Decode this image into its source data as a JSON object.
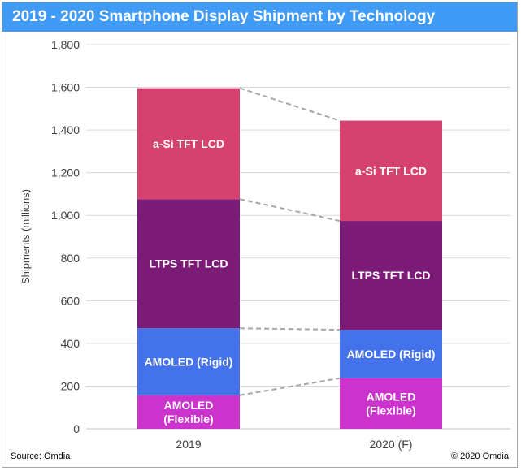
{
  "header": {
    "title": "2019 - 2020 Smartphone Display Shipment by Technology"
  },
  "footer": {
    "source": "Source: Omdia",
    "copyright": "© 2020 Omdia"
  },
  "chart_data": {
    "type": "bar",
    "stacked": true,
    "title": "2019 - 2020 Smartphone Display Shipment by Technology",
    "xlabel": "",
    "ylabel": "Shipments (millions)",
    "ylim": [
      0,
      1800
    ],
    "yticks": [
      0,
      200,
      400,
      600,
      800,
      1000,
      1200,
      1400,
      1600,
      1800
    ],
    "ytick_labels": [
      "0",
      "200",
      "400",
      "600",
      "800",
      "1,000",
      "1,200",
      "1,400",
      "1,600",
      "1,800"
    ],
    "categories": [
      "2019",
      "2020 (F)"
    ],
    "series": [
      {
        "name": "AMOLED (Flexible)",
        "values": [
          157,
          237
        ],
        "color": "#cc33cc",
        "label_lines": [
          "AMOLED",
          "(Flexible)"
        ]
      },
      {
        "name": "AMOLED (Rigid)",
        "values": [
          314,
          227
        ],
        "color": "#4472ea",
        "label_lines": [
          "AMOLED (Rigid)"
        ]
      },
      {
        "name": "LTPS TFT LCD",
        "values": [
          605,
          510
        ],
        "color": "#7b1a77",
        "label_lines": [
          "LTPS TFT LCD"
        ]
      },
      {
        "name": "a-Si TFT LCD",
        "values": [
          520,
          470
        ],
        "color": "#d6426f",
        "label_lines": [
          "a-Si TFT LCD"
        ]
      }
    ],
    "grid": true,
    "connector_lines": true,
    "legend": "none"
  }
}
